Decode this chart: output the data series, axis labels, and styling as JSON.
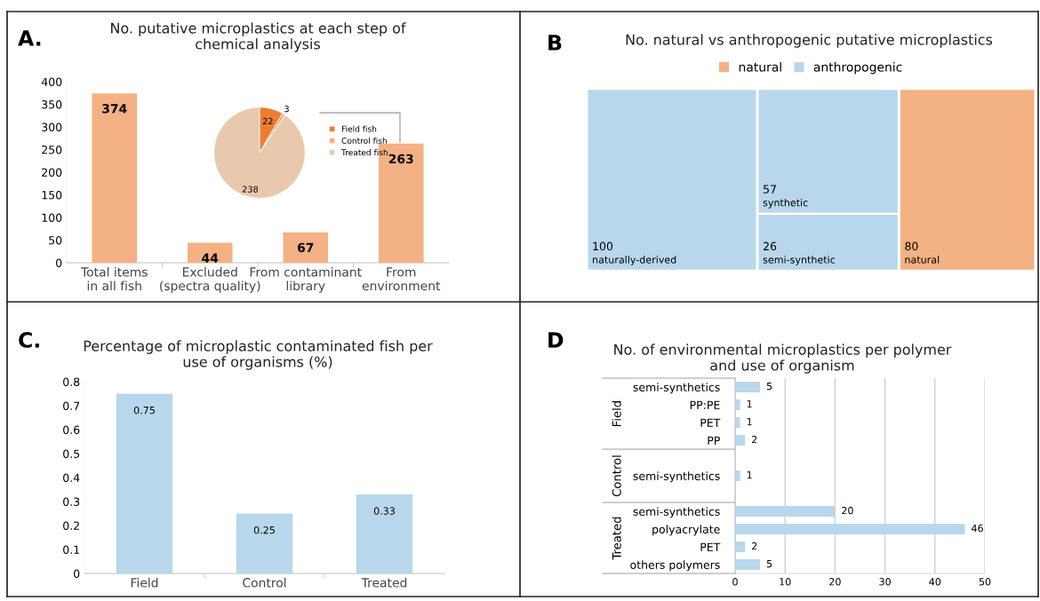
{
  "chart_data": [
    {
      "type": "bar",
      "title": "No. putative microplastics at each step of\nchemical analysis",
      "annotations": [
        "A."
      ],
      "categories": [
        "Total items\nin all fish",
        "Excluded\n(spectra quality)",
        "From contaminant\nlibrary",
        "From\nenvironment"
      ],
      "values": [
        374,
        44,
        67,
        263
      ],
      "color": "#f4b183",
      "ylim": [
        0,
        400
      ],
      "yticks": [
        0,
        50,
        100,
        150,
        200,
        250,
        300,
        350,
        400
      ],
      "data_labels": true,
      "grid": false
    },
    {
      "type": "pie",
      "categories": [
        "Field fish",
        "Control fish",
        "Treated fish"
      ],
      "values": [
        22,
        3,
        238
      ],
      "colors": [
        "#ed7d31",
        "#f4b183",
        "#e9c9ad"
      ],
      "data_labels": true,
      "legend": "right"
    },
    {
      "type": "other",
      "title": "No. natural vs anthropogenic putative microplastics",
      "annotations": [
        "B"
      ],
      "categories": [
        "naturally-derived",
        "synthetic",
        "semi-synthetic",
        "natural"
      ],
      "series": [
        {
          "name": "natural",
          "color": "#f4b183",
          "values": [
            null,
            null,
            null,
            80
          ]
        },
        {
          "name": "anthropogenic",
          "color": "#b9d7ec",
          "values": [
            100,
            57,
            26,
            null
          ]
        }
      ],
      "data_labels": true,
      "legend": "top"
    },
    {
      "type": "bar",
      "title": "Percentage of microplastic contaminated fish per\nuse of organisms (%)",
      "annotations": [
        "C."
      ],
      "categories": [
        "Field",
        "Control",
        "Treated"
      ],
      "values": [
        0.75,
        0.25,
        0.33
      ],
      "color": "#b9d7ec",
      "ylim": [
        0,
        0.8
      ],
      "yticks": [
        {
          "value": 0,
          "label": "0"
        },
        0.1,
        0.2,
        0.3,
        0.4,
        0.5,
        0.6,
        0.7,
        0.8
      ],
      "data_labels": true,
      "grid": false
    },
    {
      "type": "bar",
      "orientation": "horizontal",
      "title": "No. of environmental microplastics per polymer\nand use of organism",
      "annotations": [
        "D",
        "Field",
        "Control",
        "Treated"
      ],
      "categories": [
        "semi-synthetics",
        "PP:PE",
        "PET",
        "PP",
        null,
        "semi-synthetics",
        null,
        "semi-synthetics",
        "polyacrylate",
        "PET",
        "others polymers"
      ],
      "values": [
        5,
        1,
        1,
        2,
        null,
        1,
        null,
        20,
        46,
        2,
        5
      ],
      "color": "#b9d7ec",
      "xlim": [
        0,
        50
      ],
      "xticks": [
        0,
        10,
        20,
        30,
        40,
        50
      ],
      "data_labels": true,
      "grid": "x"
    }
  ]
}
